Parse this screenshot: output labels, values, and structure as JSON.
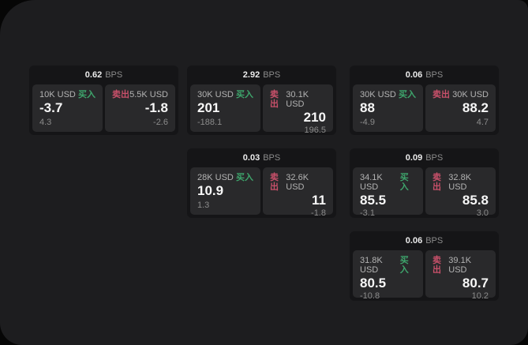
{
  "labels": {
    "buy": "买入",
    "sell": "卖出",
    "bps": "BPS"
  },
  "colors": {
    "buy": "#3ea56c",
    "sell": "#c8506a",
    "panel": "#1d1d1f",
    "card": "#151517",
    "tile": "#29292b"
  },
  "cards": [
    {
      "bps": "0.62",
      "buy": {
        "amount": "10K USD",
        "price": "-3.7",
        "sub": "4.3"
      },
      "sell": {
        "amount": "5.5K USD",
        "price": "-1.8",
        "sub": "-2.6"
      }
    },
    {
      "bps": "2.92",
      "buy": {
        "amount": "30K USD",
        "price": "201",
        "sub": "-188.1"
      },
      "sell": {
        "amount": "30.1K USD",
        "price": "210",
        "sub": "196.5"
      }
    },
    {
      "bps": "0.06",
      "buy": {
        "amount": "30K USD",
        "price": "88",
        "sub": "-4.9"
      },
      "sell": {
        "amount": "30K USD",
        "price": "88.2",
        "sub": "4.7"
      }
    },
    {
      "bps": "0.03",
      "buy": {
        "amount": "28K USD",
        "price": "10.9",
        "sub": "1.3"
      },
      "sell": {
        "amount": "32.6K USD",
        "price": "11",
        "sub": "-1.8"
      }
    },
    {
      "bps": "0.09",
      "buy": {
        "amount": "34.1K USD",
        "price": "85.5",
        "sub": "-3.1"
      },
      "sell": {
        "amount": "32.8K USD",
        "price": "85.8",
        "sub": "3.0"
      }
    },
    {
      "bps": "0.06",
      "buy": {
        "amount": "31.8K USD",
        "price": "80.5",
        "sub": "-10.8"
      },
      "sell": {
        "amount": "39.1K USD",
        "price": "80.7",
        "sub": "10.2"
      }
    }
  ]
}
